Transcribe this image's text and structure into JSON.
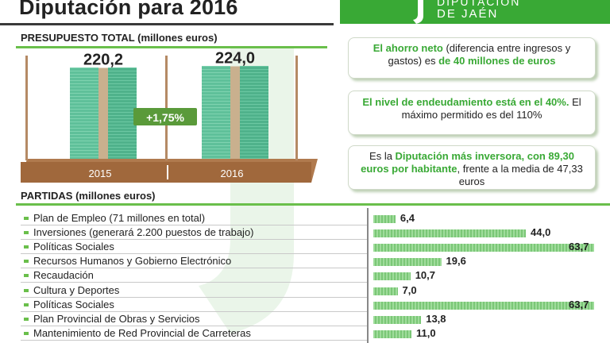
{
  "header": {
    "title": "Diputación para 2016",
    "brand_line1": "DIPUTACIÓN",
    "brand_line2": "DE JAÉN",
    "brand_color": "#39a935"
  },
  "chart_data": [
    {
      "type": "bar",
      "title": "PRESUPUESTO TOTAL (millones euros)",
      "categories": [
        "2015",
        "2016"
      ],
      "values": [
        220.2,
        224.0
      ],
      "value_labels": [
        "220,2",
        "224,0"
      ],
      "annotation": "+1,75%",
      "ylim": [
        0,
        250
      ]
    },
    {
      "type": "bar",
      "title": "PARTIDAS (millones euros)",
      "orientation": "horizontal",
      "categories": [
        "Plan de Empleo (71 millones en total)",
        "Inversiones (generará 2.200 puestos de trabajo)",
        "Políticas Sociales",
        "Recursos Humanos y Gobierno Electrónico",
        "Recaudación",
        "Cultura y Deportes",
        "Políticas Sociales",
        "Plan Provincial de Obras y Servicios",
        "Mantenimiento de Red Provincial de Carreteras"
      ],
      "values": [
        6.4,
        44.0,
        63.7,
        19.6,
        10.7,
        7.0,
        63.7,
        13.8,
        11.0
      ],
      "value_labels": [
        "6,4",
        "44,0",
        "63,7",
        "19,6",
        "10,7",
        "7,0",
        "63,7",
        "13,8",
        "11,0"
      ],
      "xlim": [
        0,
        63.7
      ]
    }
  ],
  "callouts": {
    "c1": {
      "hl1": "El ahorro neto",
      "t1": " (diferencia entre ingresos y gastos) es ",
      "hl2": "de 40 millones de euros"
    },
    "c2": {
      "hl1": "El nivel de endeudamiento está en el 40%.",
      "t1": " El máximo permitido es del 110%"
    },
    "c3": {
      "t1": "Es la ",
      "hl1": "Diputación más inversora, con 89,30 euros por habitante",
      "t2": ", frente a la media de 47,33 euros"
    }
  }
}
